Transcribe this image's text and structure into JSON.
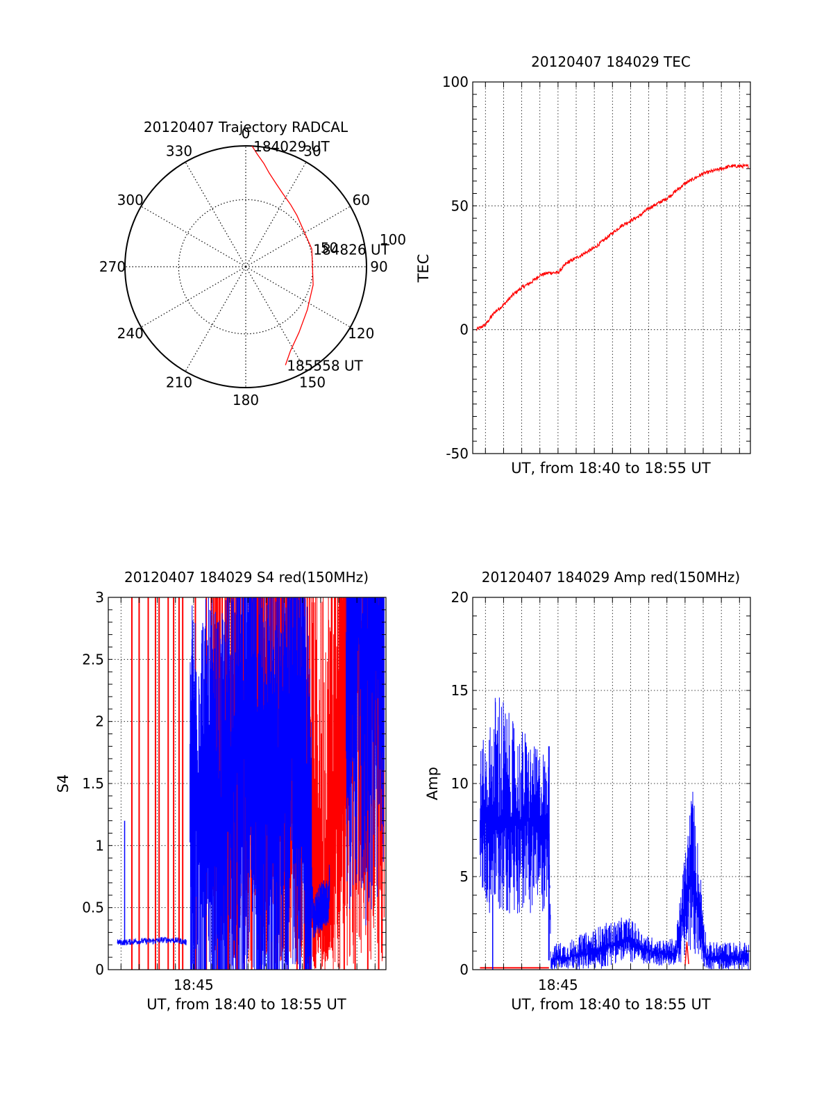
{
  "chart_data": [
    {
      "id": "trajectory",
      "type": "scatter",
      "subtype": "polar",
      "title": "20120407 Trajectory RADCAL",
      "angle_labels": [
        "0",
        "30",
        "60",
        "90",
        "120",
        "150",
        "180",
        "210",
        "240",
        "270",
        "300",
        "330"
      ],
      "ring_labels": [
        "50",
        "100"
      ],
      "rlim": [
        0,
        100
      ],
      "grid": true,
      "series": [
        {
          "color": "#ff0000",
          "azimuth_deg": [
            3,
            6,
            10,
            14,
            20,
            27,
            36,
            45,
            75,
            105,
            125,
            141,
            152,
            158
          ],
          "zenith_deg": [
            90,
            84,
            78,
            72,
            66,
            61,
            57,
            54,
            51,
            52,
            56,
            63,
            71,
            79
          ]
        }
      ],
      "annotations": [
        {
          "text": "184029 UT",
          "azimuth_deg": 3,
          "zenith_deg": 90
        },
        {
          "text": "184826 UT",
          "azimuth_deg": 75,
          "zenith_deg": 51
        },
        {
          "text": "185558 UT",
          "azimuth_deg": 158,
          "zenith_deg": 79
        }
      ]
    },
    {
      "id": "tec",
      "type": "line",
      "title": "20120407 184029 TEC",
      "xlabel": "UT, from 18:40 to 18:55 UT",
      "ylabel": "TEC",
      "xlim_min": [
        40.3,
        55.6
      ],
      "ylim": [
        -50,
        100
      ],
      "yticks": [
        "-50",
        "0",
        "50",
        "100"
      ],
      "grid": true,
      "series": [
        {
          "color": "#ff0000",
          "x_min": [
            40.5,
            41.0,
            41.5,
            42.0,
            42.5,
            43.0,
            43.5,
            44.0,
            44.5,
            45.0,
            45.5,
            46.0,
            46.5,
            47.0,
            47.5,
            48.0,
            48.5,
            49.0,
            49.5,
            50.0,
            50.5,
            51.0,
            51.5,
            52.0,
            52.5,
            53.0,
            53.5,
            54.0,
            54.5,
            55.0,
            55.5
          ],
          "y": [
            0,
            2,
            7,
            10,
            14,
            17,
            19,
            22,
            23,
            23,
            27,
            29,
            31,
            33,
            36,
            39,
            42,
            44,
            46,
            49,
            51,
            53,
            56,
            59,
            61,
            63,
            64,
            65,
            66,
            66,
            66
          ]
        }
      ]
    },
    {
      "id": "s4",
      "type": "line",
      "title": "20120407 184029 S4 red(150MHz)",
      "xlabel": "UT, from 18:40 to 18:55 UT",
      "ylabel": "S4",
      "xtick_labels": [
        "18:45"
      ],
      "xlim_min": [
        40.3,
        55.6
      ],
      "ylim": [
        0,
        3
      ],
      "yticks": [
        "0",
        "0.5",
        "1",
        "1.5",
        "2",
        "2.5",
        "3"
      ],
      "grid": true,
      "series": [
        {
          "color": "#0000ff",
          "x_min": [
            40.8,
            41.3,
            41.8,
            42.3,
            42.8,
            43.3,
            43.8,
            44.3,
            44.6,
            46.0,
            46.5,
            47.0,
            47.5,
            48.0,
            48.5,
            49.0,
            49.5,
            50.0,
            50.5,
            51.0,
            51.6,
            52.0,
            52.4,
            53.5,
            54.0,
            54.5,
            55.0,
            55.5
          ],
          "y": [
            0.22,
            0.22,
            0.23,
            0.23,
            0.23,
            0.24,
            0.24,
            0.23,
            0.22,
            1.4,
            1.2,
            1.7,
            1.9,
            2.0,
            1.7,
            1.9,
            1.5,
            1.7,
            2.2,
            2.1,
            0.45,
            0.5,
            0.55,
            2.6,
            2.8,
            2.5,
            2.7,
            2.6
          ]
        },
        {
          "color": "#ff0000",
          "x_min": [
            41.6,
            46.1,
            46.5,
            47.0,
            47.5,
            48.0,
            48.5,
            49.0,
            49.5,
            50.0,
            50.5,
            51.6,
            52.0,
            52.4,
            53.6,
            54.0,
            54.5,
            55.0,
            55.5
          ],
          "y": [
            0.3,
            1.3,
            1.5,
            1.2,
            1.8,
            1.6,
            1.9,
            1.5,
            1.7,
            2.0,
            1.6,
            0.4,
            0.45,
            0.5,
            2.4,
            2.6,
            2.2,
            2.5,
            2.3
          ]
        }
      ]
    },
    {
      "id": "amp",
      "type": "line",
      "title": "20120407 184029 Amp red(150MHz)",
      "xlabel": "UT, from 18:40 to 18:55 UT",
      "ylabel": "Amp",
      "xtick_labels": [
        "18:45"
      ],
      "xlim_min": [
        40.3,
        55.6
      ],
      "ylim": [
        0,
        20
      ],
      "yticks": [
        "0",
        "5",
        "10",
        "15",
        "20"
      ],
      "grid": true,
      "series": [
        {
          "color": "#0000ff",
          "x_min": [
            40.7,
            41.2,
            41.7,
            42.2,
            42.7,
            43.2,
            43.7,
            44.2,
            44.5,
            44.6,
            45.0,
            45.5,
            46.0,
            46.5,
            47.0,
            47.5,
            48.0,
            48.5,
            49.0,
            49.5,
            50.0,
            50.5,
            51.0,
            51.5,
            52.0,
            52.4,
            52.8,
            53.2,
            53.6,
            54.0,
            54.5,
            55.0,
            55.5
          ],
          "y": [
            8,
            8,
            8,
            8,
            8,
            8,
            8,
            8,
            8,
            0.5,
            0.6,
            0.6,
            0.8,
            0.8,
            1.0,
            1.2,
            1.3,
            1.5,
            1.5,
            1.2,
            1.0,
            0.9,
            0.8,
            0.9,
            3.5,
            5.0,
            3.0,
            0.6,
            0.6,
            0.6,
            0.6,
            0.6,
            0.6
          ],
          "y_max": [
            12,
            13,
            16,
            14,
            13,
            13,
            12,
            12,
            11,
            1.2,
            1.5,
            1.5,
            1.8,
            2.0,
            2.2,
            2.5,
            2.6,
            2.8,
            2.8,
            2.2,
            1.8,
            1.7,
            1.6,
            1.8,
            6.5,
            10.2,
            6.0,
            1.5,
            1.5,
            1.5,
            1.5,
            1.5,
            1.5
          ],
          "y_min": [
            4,
            3,
            3,
            3,
            3,
            3,
            3,
            3,
            4,
            0,
            0,
            0,
            0,
            0,
            0,
            0,
            0.3,
            0.4,
            0.4,
            0.3,
            0.2,
            0.2,
            0.2,
            0.2,
            0.5,
            0.5,
            0.5,
            0,
            0,
            0,
            0,
            0,
            0
          ]
        },
        {
          "color": "#ff0000",
          "x_min": [
            40.7,
            44.5,
            52.0,
            52.5
          ],
          "y": [
            0.1,
            0.1,
            1.0,
            0.5
          ]
        }
      ]
    }
  ]
}
